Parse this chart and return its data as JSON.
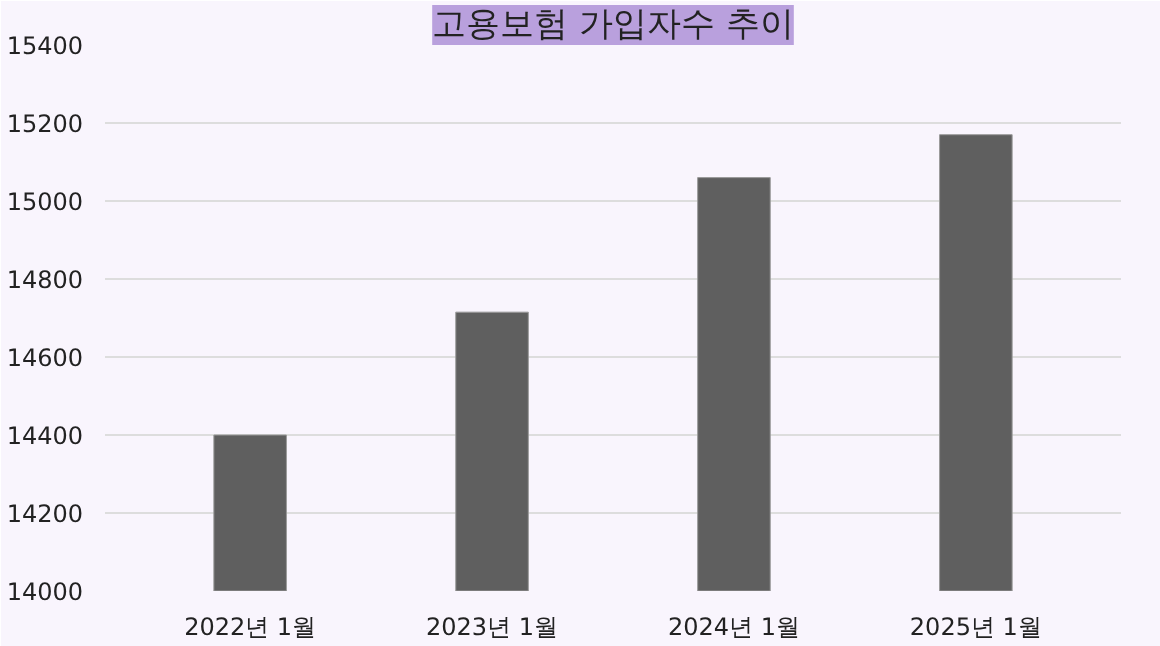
{
  "chart_data": {
    "type": "bar",
    "title": "고용보험 가입자수 추이",
    "categories": [
      "2022년 1월",
      "2023년 1월",
      "2024년 1월",
      "2025년 1월"
    ],
    "values": [
      14400,
      14715,
      15060,
      15170
    ],
    "color": "#5f5f5f",
    "ylim": [
      14000,
      15400
    ],
    "yticks": [
      14000,
      14200,
      14400,
      14600,
      14800,
      15000,
      15200,
      15400
    ],
    "grid": "y"
  }
}
